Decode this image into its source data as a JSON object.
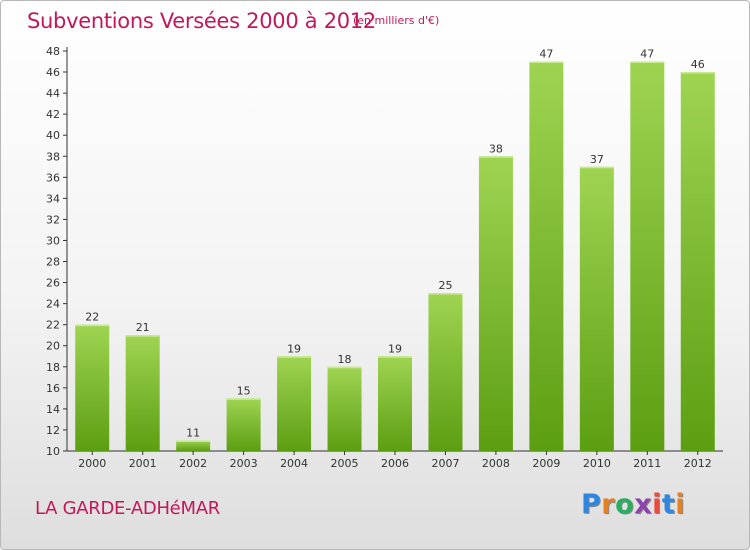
{
  "header": {
    "title": "Subventions Versées 2000 à 2012",
    "subtitle": "(en milliers d'€)"
  },
  "footer": {
    "commune": "LA GARDE-ADHéMAR",
    "logo": {
      "letters": [
        "P",
        "r",
        "o",
        "x",
        "i",
        "t",
        "i"
      ],
      "colors": [
        "#2e86de",
        "#e67e22",
        "#27ae60",
        "#8e44ad",
        "#e74c3c",
        "#2e86de",
        "#e67e22"
      ]
    }
  },
  "chart_data": {
    "type": "bar",
    "categories": [
      "2000",
      "2001",
      "2002",
      "2003",
      "2004",
      "2005",
      "2006",
      "2007",
      "2008",
      "2009",
      "2010",
      "2011",
      "2012"
    ],
    "values": [
      22,
      21,
      11,
      15,
      19,
      18,
      19,
      25,
      38,
      47,
      37,
      47,
      46
    ],
    "data_labels": [
      "22",
      "21",
      "11",
      "15",
      "19",
      "18",
      "19",
      "25",
      "38",
      "47",
      "37",
      "47",
      "46"
    ],
    "title": "Subventions Versées 2000 à 2012",
    "subtitle": "(en milliers d'€)",
    "ylim": [
      10,
      48
    ],
    "yticks": [
      "10",
      "12",
      "14",
      "16",
      "18",
      "20",
      "22",
      "24",
      "26",
      "28",
      "30",
      "32",
      "34",
      "36",
      "38",
      "40",
      "42",
      "44",
      "46",
      "48"
    ],
    "grid": false,
    "legend": "none",
    "colors": {
      "bar_top": "#9fd452",
      "bar_bottom": "#5c9e12",
      "text": "#333333",
      "axis": "#333333"
    }
  }
}
